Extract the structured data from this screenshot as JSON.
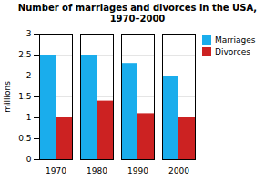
{
  "chart_data": {
    "type": "bar",
    "title": "Number of marriages and divorces in the USA,\n1970–2000",
    "categories": [
      "1970",
      "1980",
      "1990",
      "2000"
    ],
    "series": [
      {
        "name": "Marriages",
        "color": "#1AADEC",
        "values": [
          2.5,
          2.5,
          2.3,
          2.0
        ]
      },
      {
        "name": "Divorces",
        "color": "#CC2222",
        "values": [
          1.0,
          1.4,
          1.1,
          1.0
        ]
      }
    ],
    "ylabel": "millions",
    "ylim": [
      0,
      3
    ],
    "yticks": [
      0,
      0.5,
      1,
      1.5,
      2,
      2.5,
      3
    ],
    "grid": true,
    "legend": "right"
  }
}
